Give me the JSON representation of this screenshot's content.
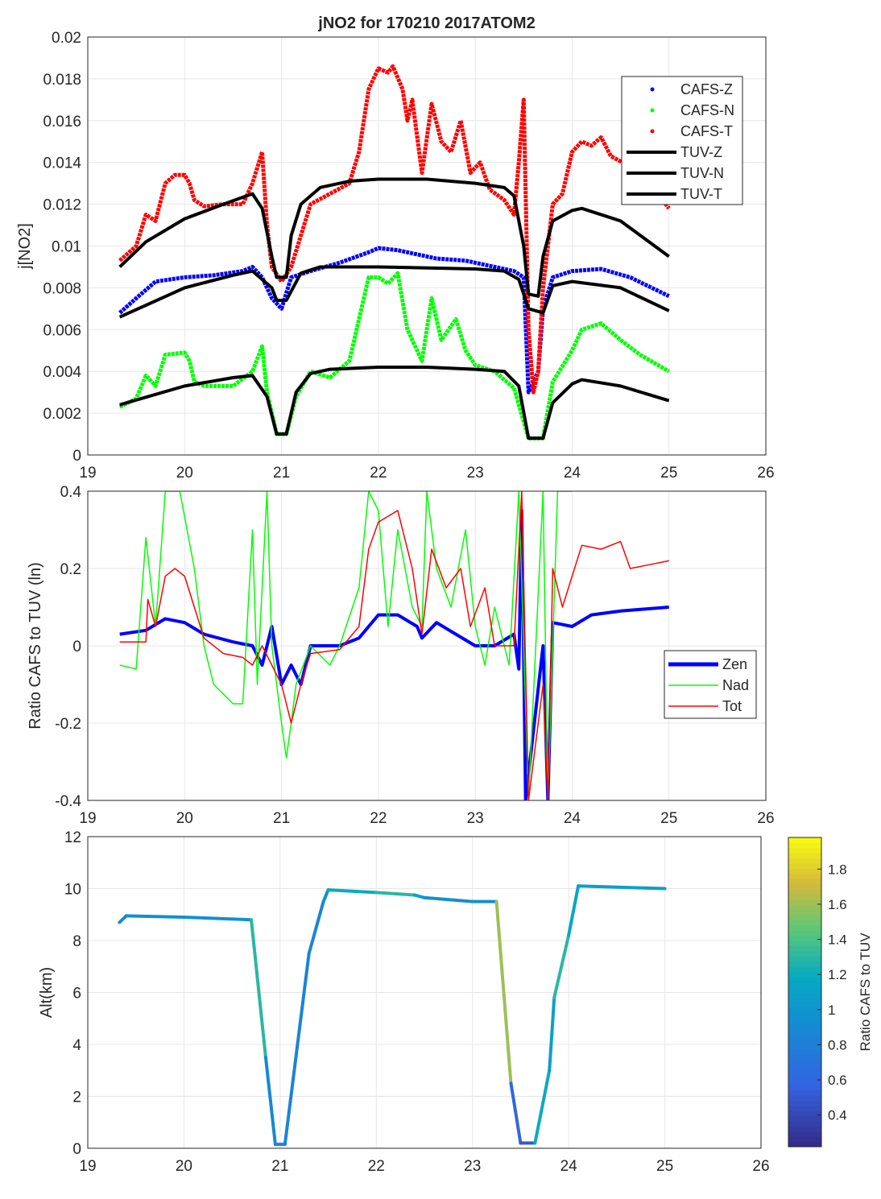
{
  "chart_data": [
    {
      "type": "scatter",
      "title": "jNO2 for 170210 2017ATOM2",
      "xlabel": "",
      "ylabel": "j[NO2]",
      "xlim": [
        19,
        26
      ],
      "ylim": [
        0,
        0.02
      ],
      "xticks": [
        "19",
        "20",
        "21",
        "22",
        "23",
        "24",
        "25",
        "26"
      ],
      "yticks": [
        "0",
        "0.002",
        "0.004",
        "0.006",
        "0.008",
        "0.01",
        "0.012",
        "0.014",
        "0.016",
        "0.018",
        "0.02"
      ],
      "grid": true,
      "legend_position": "top-right",
      "series": [
        {
          "name": "CAFS-Z",
          "style": "points",
          "color": "#0000ff",
          "x": [
            19.33,
            19.5,
            19.7,
            20,
            20.3,
            20.6,
            20.7,
            20.8,
            20.9,
            21,
            21.1,
            21.3,
            21.6,
            21.9,
            22,
            22.2,
            22.4,
            22.6,
            22.9,
            23.2,
            23.4,
            23.5,
            23.55,
            23.65,
            23.7,
            23.8,
            24,
            24.3,
            24.6,
            25
          ],
          "y": [
            0.0068,
            0.0075,
            0.0083,
            0.0085,
            0.0086,
            0.0088,
            0.009,
            0.0085,
            0.0075,
            0.007,
            0.0085,
            0.0088,
            0.0092,
            0.0097,
            0.0099,
            0.0098,
            0.0096,
            0.0094,
            0.0093,
            0.009,
            0.0088,
            0.0085,
            0.003,
            0.004,
            0.007,
            0.0085,
            0.0088,
            0.0089,
            0.0085,
            0.0076
          ]
        },
        {
          "name": "CAFS-N",
          "style": "points",
          "color": "#00ff00",
          "x": [
            19.33,
            19.5,
            19.6,
            19.7,
            19.8,
            20,
            20.05,
            20.1,
            20.2,
            20.5,
            20.7,
            20.8,
            20.85,
            20.95,
            21.05,
            21.15,
            21.3,
            21.5,
            21.7,
            21.9,
            22,
            22.1,
            22.2,
            22.3,
            22.45,
            22.55,
            22.65,
            22.8,
            22.9,
            23,
            23.2,
            23.4,
            23.55,
            23.7,
            23.8,
            24,
            24.1,
            24.3,
            24.5,
            24.7,
            25
          ],
          "y": [
            0.0023,
            0.0027,
            0.0038,
            0.0033,
            0.0048,
            0.0049,
            0.0045,
            0.0035,
            0.0033,
            0.0033,
            0.004,
            0.0052,
            0.003,
            0.001,
            0.001,
            0.0028,
            0.004,
            0.0037,
            0.0045,
            0.0085,
            0.0085,
            0.0082,
            0.0087,
            0.006,
            0.0045,
            0.0075,
            0.0055,
            0.0065,
            0.005,
            0.0043,
            0.004,
            0.0032,
            0.0008,
            0.0008,
            0.0035,
            0.005,
            0.006,
            0.0063,
            0.0055,
            0.0048,
            0.004
          ]
        },
        {
          "name": "CAFS-T",
          "style": "points",
          "color": "#ff0000",
          "x": [
            19.33,
            19.5,
            19.6,
            19.7,
            19.8,
            19.9,
            20,
            20.05,
            20.1,
            20.2,
            20.4,
            20.6,
            20.7,
            20.8,
            20.85,
            20.9,
            21,
            21.1,
            21.2,
            21.3,
            21.5,
            21.7,
            21.8,
            21.9,
            22,
            22.1,
            22.15,
            22.25,
            22.3,
            22.35,
            22.45,
            22.55,
            22.65,
            22.75,
            22.85,
            22.95,
            23.05,
            23.15,
            23.3,
            23.4,
            23.45,
            23.5,
            23.55,
            23.6,
            23.65,
            23.7,
            23.8,
            23.9,
            24,
            24.1,
            24.2,
            24.3,
            24.4,
            24.6,
            24.8,
            25
          ],
          "y": [
            0.0093,
            0.01,
            0.0115,
            0.0112,
            0.013,
            0.0134,
            0.0134,
            0.013,
            0.0122,
            0.0119,
            0.012,
            0.012,
            0.013,
            0.0145,
            0.011,
            0.009,
            0.0083,
            0.009,
            0.0105,
            0.012,
            0.0125,
            0.013,
            0.0145,
            0.0175,
            0.0185,
            0.0183,
            0.0186,
            0.0175,
            0.016,
            0.017,
            0.0135,
            0.0168,
            0.015,
            0.0145,
            0.016,
            0.0135,
            0.014,
            0.0127,
            0.0122,
            0.0115,
            0.014,
            0.017,
            0.006,
            0.003,
            0.004,
            0.008,
            0.012,
            0.0125,
            0.0145,
            0.015,
            0.0148,
            0.0152,
            0.0143,
            0.0138,
            0.013,
            0.0118
          ]
        },
        {
          "name": "TUV-Z",
          "style": "line",
          "color": "#000000",
          "x": [
            19.33,
            20,
            20.5,
            20.7,
            20.9,
            20.95,
            21.05,
            21.2,
            21.4,
            22,
            23,
            23.3,
            23.45,
            23.55,
            23.7,
            23.8,
            24,
            24.5,
            25
          ],
          "y": [
            0.0066,
            0.008,
            0.0086,
            0.0088,
            0.008,
            0.0074,
            0.0074,
            0.0087,
            0.009,
            0.009,
            0.0089,
            0.0088,
            0.0084,
            0.007,
            0.0068,
            0.0081,
            0.0083,
            0.008,
            0.0069
          ]
        },
        {
          "name": "TUV-N",
          "style": "line",
          "color": "#000000",
          "x": [
            19.33,
            20,
            20.5,
            20.7,
            20.85,
            20.95,
            21.05,
            21.15,
            21.3,
            21.5,
            22,
            22.5,
            23,
            23.3,
            23.45,
            23.55,
            23.7,
            23.8,
            24,
            24.1,
            24.5,
            25
          ],
          "y": [
            0.0024,
            0.0033,
            0.0037,
            0.0038,
            0.0028,
            0.001,
            0.001,
            0.003,
            0.0039,
            0.0041,
            0.0042,
            0.0042,
            0.0041,
            0.004,
            0.0033,
            0.0008,
            0.0008,
            0.0025,
            0.0034,
            0.0036,
            0.0033,
            0.0026
          ]
        },
        {
          "name": "TUV-T",
          "style": "line",
          "color": "#000000",
          "x": [
            19.33,
            19.6,
            20,
            20.4,
            20.7,
            20.8,
            20.9,
            20.95,
            21.05,
            21.1,
            21.2,
            21.4,
            21.7,
            22,
            22.5,
            23,
            23.3,
            23.4,
            23.5,
            23.55,
            23.65,
            23.7,
            23.8,
            24,
            24.1,
            24.5,
            25
          ],
          "y": [
            0.009,
            0.0102,
            0.0113,
            0.012,
            0.0125,
            0.0118,
            0.0095,
            0.0085,
            0.0085,
            0.0105,
            0.012,
            0.0128,
            0.0131,
            0.0132,
            0.0132,
            0.013,
            0.0128,
            0.0124,
            0.01,
            0.0077,
            0.0076,
            0.0095,
            0.0112,
            0.0117,
            0.0118,
            0.0112,
            0.0095
          ]
        }
      ]
    },
    {
      "type": "line",
      "title": "",
      "xlabel": "",
      "ylabel": "Ratio CAFS to TUV (ln)",
      "xlim": [
        19,
        26
      ],
      "ylim": [
        -0.4,
        0.4
      ],
      "xticks": [
        "19",
        "20",
        "21",
        "22",
        "23",
        "24",
        "25",
        "26"
      ],
      "yticks": [
        "-0.4",
        "-0.2",
        "0",
        "0.2",
        "0.4"
      ],
      "grid": true,
      "legend_position": "right",
      "series": [
        {
          "name": "Zen",
          "color": "#0000ff",
          "width": "thick",
          "x": [
            19.33,
            19.6,
            19.8,
            20,
            20.2,
            20.5,
            20.7,
            20.8,
            20.9,
            21,
            21.1,
            21.2,
            21.3,
            21.6,
            21.8,
            22,
            22.2,
            22.4,
            22.45,
            22.6,
            22.8,
            23,
            23.2,
            23.4,
            23.45,
            23.48,
            23.52,
            23.7,
            23.75,
            23.8,
            24,
            24.2,
            24.5,
            25
          ],
          "y": [
            0.03,
            0.04,
            0.07,
            0.06,
            0.03,
            0.01,
            0,
            -0.05,
            0.05,
            -0.1,
            -0.05,
            -0.1,
            0,
            0,
            0.02,
            0.08,
            0.08,
            0.05,
            0.02,
            0.06,
            0.03,
            0,
            0,
            0.03,
            -0.06,
            0.35,
            -0.4,
            0,
            -0.4,
            0.06,
            0.05,
            0.08,
            0.09,
            0.1
          ]
        },
        {
          "name": "Nad",
          "color": "#00ff00",
          "width": "thin",
          "x": [
            19.33,
            19.5,
            19.6,
            19.7,
            19.8,
            19.95,
            20.1,
            20.2,
            20.3,
            20.5,
            20.6,
            20.7,
            20.75,
            20.85,
            20.9,
            21,
            21.05,
            21.1,
            21.15,
            21.3,
            21.5,
            21.6,
            21.8,
            21.9,
            22,
            22.1,
            22.2,
            22.35,
            22.45,
            22.5,
            22.6,
            22.75,
            22.9,
            23,
            23.1,
            23.2,
            23.35,
            23.45,
            23.55,
            23.7,
            23.75,
            23.85,
            24
          ],
          "y": [
            -0.05,
            -0.06,
            0.28,
            0.05,
            0.4,
            0.4,
            0.2,
            0,
            -0.1,
            -0.15,
            -0.15,
            0.3,
            -0.1,
            0.4,
            0,
            -0.2,
            -0.29,
            -0.2,
            -0.1,
            0,
            -0.05,
            0,
            0.15,
            0.4,
            0.35,
            0.05,
            0.3,
            0.1,
            0.05,
            0.4,
            0.2,
            0.1,
            0.3,
            0.05,
            -0.05,
            0.1,
            -0.05,
            0.4,
            -0.4,
            0.4,
            -0.4,
            0.4,
            0.4
          ]
        },
        {
          "name": "Tot",
          "color": "#ff0000",
          "width": "thin",
          "x": [
            19.33,
            19.6,
            19.62,
            19.7,
            19.8,
            19.9,
            20,
            20.1,
            20.2,
            20.4,
            20.6,
            20.7,
            20.8,
            20.9,
            21,
            21.1,
            21.2,
            21.3,
            21.6,
            21.8,
            21.9,
            22,
            22.2,
            22.35,
            22.45,
            22.55,
            22.7,
            22.85,
            22.95,
            23.1,
            23.2,
            23.4,
            23.48,
            23.55,
            23.7,
            23.75,
            23.8,
            23.9,
            24.1,
            24.3,
            24.5,
            24.6,
            24.8,
            25
          ],
          "y": [
            0.01,
            0.01,
            0.12,
            0.05,
            0.18,
            0.2,
            0.18,
            0.1,
            0.02,
            -0.02,
            -0.03,
            -0.05,
            0,
            -0.05,
            -0.1,
            -0.2,
            -0.1,
            -0.02,
            -0.01,
            0.05,
            0.25,
            0.32,
            0.35,
            0.2,
            0.03,
            0.25,
            0.15,
            0.2,
            0.05,
            0.15,
            0,
            0,
            0.4,
            -0.4,
            -0.1,
            -0.4,
            0.2,
            0.1,
            0.26,
            0.25,
            0.27,
            0.2,
            0.21,
            0.22
          ]
        }
      ]
    },
    {
      "type": "line",
      "title": "",
      "xlabel": "",
      "ylabel": "Alt(km)",
      "xlim": [
        19,
        26
      ],
      "ylim": [
        0,
        12
      ],
      "xticks": [
        "19",
        "20",
        "21",
        "22",
        "23",
        "24",
        "25",
        "26"
      ],
      "yticks": [
        "0",
        "2",
        "4",
        "6",
        "8",
        "10",
        "12"
      ],
      "grid": true,
      "colorbar": {
        "label": "Ratio CAFS to TUV",
        "range": [
          0.22,
          1.98
        ],
        "ticks": [
          "0.4",
          "0.6",
          "0.8",
          "1",
          "1.2",
          "1.4",
          "1.6",
          "1.8"
        ],
        "colormap": "parula"
      },
      "series": [
        {
          "x": [
            19.33,
            19.4,
            20,
            20.7,
            20.85,
            20.95,
            21.05,
            21.3,
            21.45,
            21.5,
            22,
            22.4,
            22.5,
            23,
            23.25,
            23.4,
            23.5,
            23.65,
            23.8,
            23.85,
            24,
            24.1,
            25
          ],
          "y": [
            8.7,
            8.95,
            8.9,
            8.8,
            3.5,
            0.15,
            0.15,
            7.5,
            9.5,
            9.95,
            9.85,
            9.75,
            9.65,
            9.5,
            9.5,
            2.5,
            0.2,
            0.2,
            3,
            5.8,
            8.2,
            10.1,
            10.0
          ],
          "color_value": [
            0.9,
            0.95,
            0.95,
            0.95,
            1.3,
            0.9,
            0.85,
            0.85,
            0.85,
            0.95,
            1.2,
            1.3,
            1.1,
            0.95,
            0.95,
            1.6,
            0.6,
            0.5,
            1.2,
            1.1,
            1.3,
            1.15,
            1.1
          ]
        }
      ]
    }
  ]
}
